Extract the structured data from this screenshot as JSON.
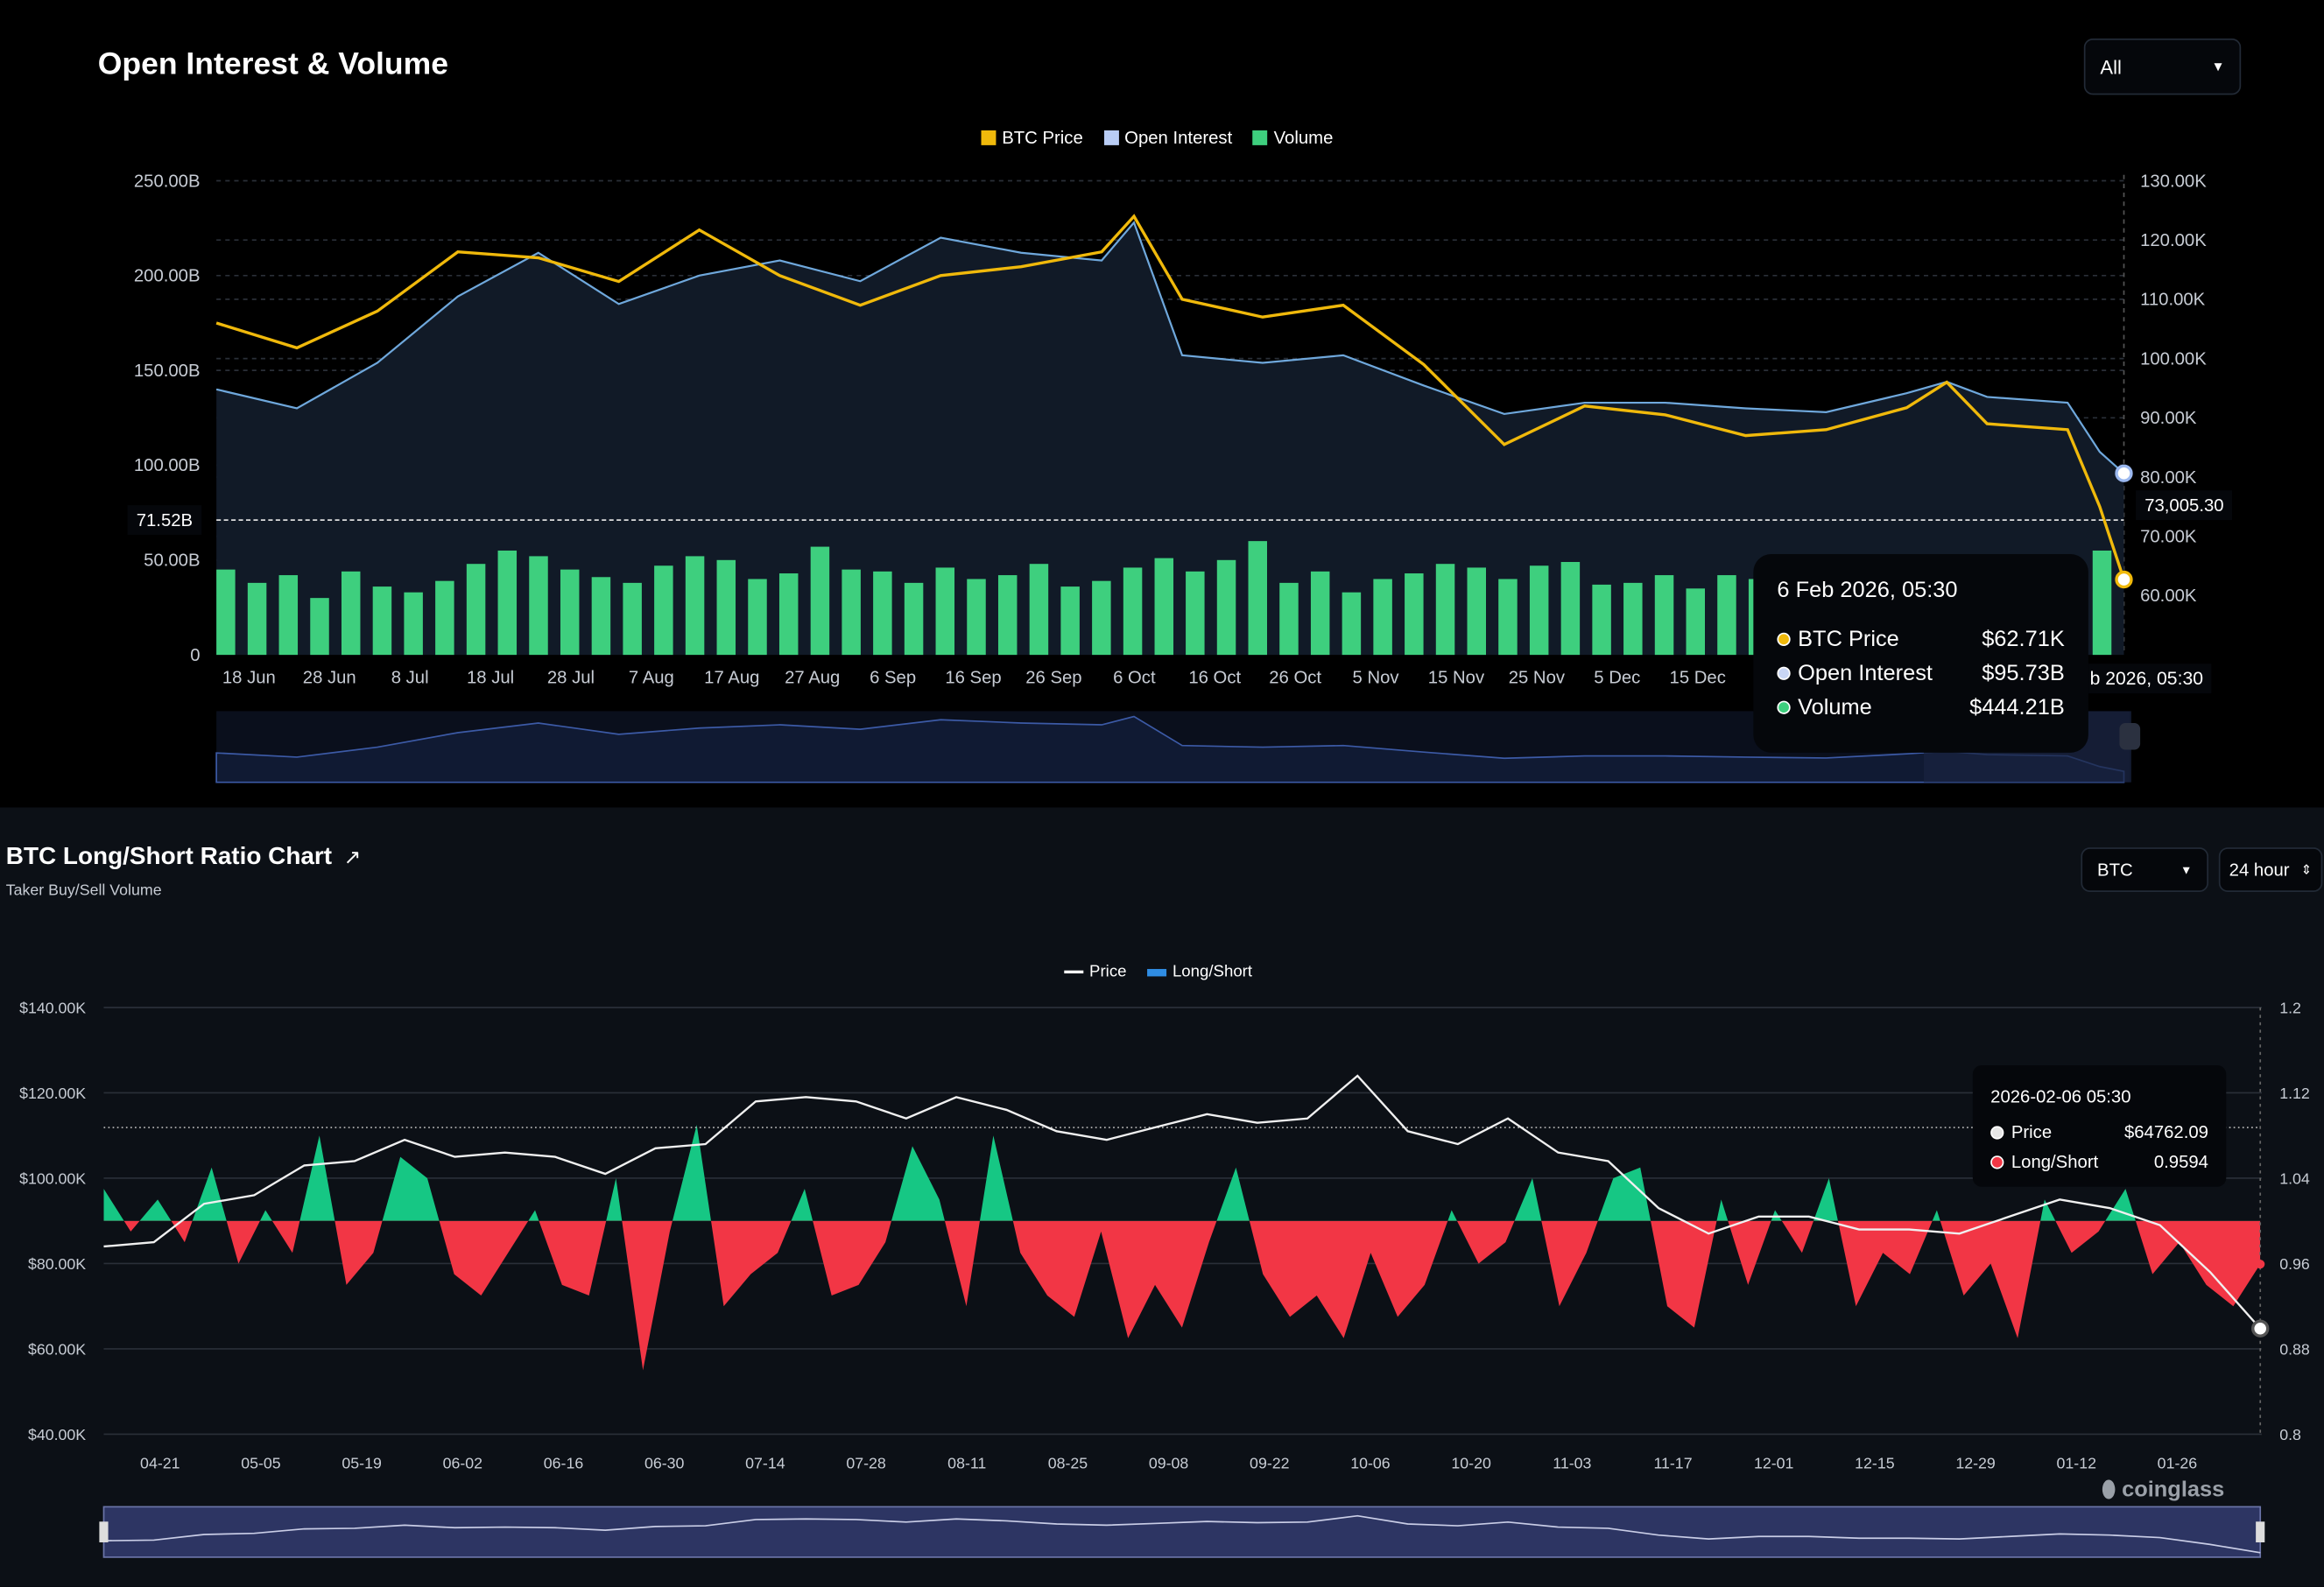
{
  "top": {
    "title": "Open Interest & Volume",
    "range_select": "All",
    "legend": [
      {
        "label": "BTC Price",
        "color": "#f0b90b"
      },
      {
        "label": "Open Interest",
        "color": "#b9cdf5"
      },
      {
        "label": "Volume",
        "color": "#3ecf7e"
      }
    ],
    "crosshair_left": "71.52B",
    "crosshair_right": "73,005.30",
    "crosshair_date": "b 2026, 05:30",
    "tooltip": {
      "date": "6 Feb 2026, 05:30",
      "rows": [
        {
          "label": "BTC Price",
          "value": "$62.71K",
          "color": "#f0b90b"
        },
        {
          "label": "Open Interest",
          "value": "$95.73B",
          "color": "#c9d6f5"
        },
        {
          "label": "Volume",
          "value": "$444.21B",
          "color": "#3ecf7e"
        }
      ]
    }
  },
  "bottom": {
    "title": "BTC Long/Short Ratio Chart",
    "subtitle": "Taker Buy/Sell Volume",
    "coin_select": "BTC",
    "interval_select": "24 hour",
    "legend": [
      {
        "label": "Price",
        "color": "#ffffff"
      },
      {
        "label": "Long/Short",
        "color": "#2f8de4"
      }
    ],
    "tooltip": {
      "date": "2026-02-06 05:30",
      "rows": [
        {
          "label": "Price",
          "value": "$64762.09",
          "color": "#e6e6e6"
        },
        {
          "label": "Long/Short",
          "value": "0.9594",
          "color": "#f23645"
        }
      ]
    },
    "watermark": "coinglass",
    "colors": {
      "long": "#16c784",
      "short": "#f23645"
    }
  },
  "chart_data": [
    {
      "type": "line+bar",
      "x_ticks": [
        "18 Jun",
        "28 Jun",
        "8 Jul",
        "18 Jul",
        "28 Jul",
        "7 Aug",
        "17 Aug",
        "27 Aug",
        "6 Sep",
        "16 Sep",
        "26 Sep",
        "6 Oct",
        "16 Oct",
        "26 Oct",
        "5 Nov",
        "15 Nov",
        "25 Nov",
        "5 Dec",
        "15 Dec"
      ],
      "y_left_ticks": [
        "0",
        "50.00B",
        "100.00B",
        "150.00B",
        "200.00B",
        "250.00B"
      ],
      "y_right_ticks": [
        "60.00K",
        "70.00K",
        "80.00K",
        "90.00K",
        "100.00K",
        "110.00K",
        "120.00K",
        "130.00K"
      ],
      "ylim_left": [
        0,
        250
      ],
      "ylim_right": [
        50,
        130
      ],
      "x": [
        "2025-06-14",
        "2025-06-24",
        "2025-07-04",
        "2025-07-14",
        "2025-07-24",
        "2025-08-03",
        "2025-08-13",
        "2025-08-23",
        "2025-09-02",
        "2025-09-12",
        "2025-09-22",
        "2025-10-02",
        "2025-10-06",
        "2025-10-12",
        "2025-10-22",
        "2025-11-01",
        "2025-11-11",
        "2025-11-21",
        "2025-12-01",
        "2025-12-11",
        "2025-12-21",
        "2025-12-31",
        "2026-01-10",
        "2026-01-15",
        "2026-01-20",
        "2026-01-30",
        "2026-02-03",
        "2026-02-06"
      ],
      "series": [
        {
          "name": "BTC Price",
          "unit": "K USD",
          "values": [
            106,
            101.8,
            108,
            118,
            117,
            113,
            121.7,
            114,
            109,
            114,
            115.5,
            118,
            124,
            110,
            107,
            109,
            99,
            85.5,
            92,
            90.5,
            87,
            88,
            91.7,
            96,
            89,
            88,
            75,
            62.71
          ]
        },
        {
          "name": "Open Interest",
          "unit": "B USD",
          "values": [
            140,
            130,
            154,
            189,
            212,
            185,
            200,
            208,
            197,
            220,
            212,
            208,
            228,
            158,
            154,
            158,
            142,
            127,
            133,
            133,
            130,
            128,
            138,
            144,
            136,
            133,
            107,
            95.73
          ]
        }
      ],
      "volume": {
        "name": "Volume",
        "unit": "B USD",
        "values": [
          45,
          38,
          42,
          30,
          44,
          36,
          33,
          39,
          48,
          55,
          52,
          45,
          41,
          38,
          47,
          52,
          50,
          40,
          43,
          57,
          45,
          44,
          38,
          46,
          40,
          42,
          48,
          36,
          39,
          46,
          51,
          44,
          50,
          60,
          38,
          44,
          33,
          40,
          43,
          48,
          46,
          40,
          47,
          49,
          37,
          38,
          42,
          35,
          42,
          40,
          48,
          41,
          39,
          44,
          38,
          36,
          33,
          40,
          42,
          49,
          55
        ]
      }
    },
    {
      "type": "line+area",
      "x_ticks": [
        "04-21",
        "05-05",
        "05-19",
        "06-02",
        "06-16",
        "06-30",
        "07-14",
        "07-28",
        "08-11",
        "08-25",
        "09-08",
        "09-22",
        "10-06",
        "10-20",
        "11-03",
        "11-17",
        "12-01",
        "12-15",
        "12-29",
        "01-12",
        "01-26"
      ],
      "y_left_ticks": [
        "$40.00K",
        "$60.00K",
        "$80.00K",
        "$100.00K",
        "$120.00K",
        "$140.00K"
      ],
      "y_right_ticks": [
        "0.8",
        "0.88",
        "0.96",
        "1.04",
        "1.12",
        "1.2"
      ],
      "ylim_left": [
        40,
        140
      ],
      "ylim_right": [
        0.8,
        1.2
      ],
      "ratio_baseline": 1.0,
      "price": {
        "name": "Price",
        "unit": "K USD",
        "start": "2025-04-13",
        "step_days": 7,
        "values": [
          84,
          85,
          94,
          96,
          103,
          104,
          109,
          105,
          106,
          105,
          101,
          107,
          108,
          118,
          119,
          118,
          114,
          119,
          116,
          111,
          109,
          112,
          115,
          113,
          114,
          124,
          111,
          108,
          114,
          106,
          104,
          93,
          87,
          91,
          91,
          88,
          88,
          87,
          91,
          95,
          93,
          89,
          78,
          64.76
        ]
      },
      "long_short": {
        "name": "Long/Short",
        "start": "2025-04-13",
        "end": "2026-02-06",
        "values": [
          1.03,
          0.99,
          1.02,
          0.98,
          1.05,
          0.96,
          1.01,
          0.97,
          1.08,
          0.94,
          0.97,
          1.06,
          1.04,
          0.95,
          0.93,
          0.97,
          1.01,
          0.94,
          0.93,
          1.04,
          0.86,
          0.99,
          1.09,
          0.92,
          0.95,
          0.97,
          1.03,
          0.93,
          0.94,
          0.98,
          1.07,
          1.02,
          0.92,
          1.08,
          0.97,
          0.93,
          0.91,
          0.99,
          0.89,
          0.94,
          0.9,
          0.98,
          1.05,
          0.95,
          0.91,
          0.93,
          0.89,
          0.97,
          0.91,
          0.94,
          1.01,
          0.96,
          0.98,
          1.04,
          0.92,
          0.97,
          1.04,
          1.05,
          0.92,
          0.9,
          1.02,
          0.94,
          1.01,
          0.97,
          1.04,
          0.92,
          0.97,
          0.95,
          1.01,
          0.93,
          0.96,
          0.89,
          1.02,
          0.97,
          0.99,
          1.03,
          0.95,
          0.98,
          0.94,
          0.92,
          0.9594
        ]
      }
    }
  ]
}
